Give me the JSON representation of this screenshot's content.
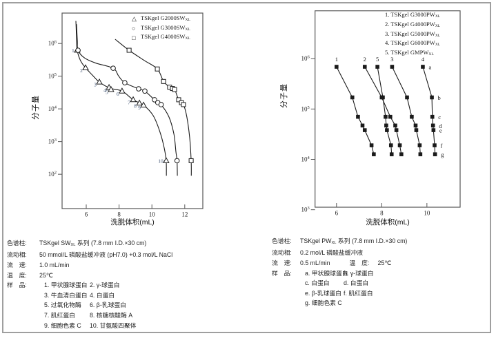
{
  "colors": {
    "ink": "#1a1a1a",
    "axis": "#555555",
    "frame": "#9f9f9f",
    "num_label": "#3f5373"
  },
  "chart_data": [
    {
      "id": "sw",
      "type": "line",
      "xlabel": "洗脱体积(mL)",
      "ylabel": "分子量",
      "x_ticks": [
        6,
        8,
        10,
        12
      ],
      "y_ticks_exp": [
        6,
        5,
        4,
        3,
        2
      ],
      "x_range": [
        4.53,
        13.1
      ],
      "y_exp_range": [
        6.93,
        0.95
      ],
      "grid": false,
      "legend_position": "top-right",
      "legend": [
        {
          "glyph": "△",
          "icon": "triangle-marker",
          "prefix": "TSKgel G2000SW",
          "sub": "XL"
        },
        {
          "glyph": "○",
          "icon": "circle-marker",
          "prefix": "TSKgel G3000SW",
          "sub": "XL"
        },
        {
          "glyph": "□",
          "icon": "square-marker",
          "prefix": "TSKgel G4000SW",
          "sub": "XL"
        }
      ],
      "series": [
        {
          "name": "TSKgel G2000SWXL",
          "marker": "triangle-open",
          "points": [
            [
              5.45,
              620000
            ],
            [
              5.96,
              180000
            ],
            [
              6.8,
              66000
            ],
            [
              7.39,
              45000
            ],
            [
              7.51,
              39000
            ],
            [
              8.18,
              35000
            ],
            [
              8.86,
              19000
            ],
            [
              9.24,
              15000
            ],
            [
              9.49,
              13000
            ],
            [
              10.87,
              260
            ]
          ],
          "point_labels": [
            "1",
            "2",
            "3",
            "4",
            "5",
            "6",
            "7",
            "8",
            "9",
            "10"
          ],
          "curve": [
            [
              5.37,
              4900000
            ],
            [
              5.41,
              1500000
            ],
            [
              5.45,
              620000
            ],
            [
              5.65,
              300000
            ],
            [
              5.96,
              180000
            ],
            [
              6.4,
              105000
            ],
            [
              6.8,
              66000
            ],
            [
              7.45,
              43000
            ],
            [
              8.18,
              35000
            ],
            [
              8.86,
              19000
            ],
            [
              9.49,
              13000
            ],
            [
              10.08,
              6200
            ],
            [
              10.5,
              1900
            ],
            [
              10.75,
              630
            ],
            [
              10.87,
              260
            ],
            [
              10.88,
              90
            ]
          ]
        },
        {
          "name": "TSKgel G3000SWXL",
          "marker": "circle-open",
          "points": [
            [
              5.5,
              620000
            ],
            [
              7.64,
              175000
            ],
            [
              8.35,
              63000
            ],
            [
              9.19,
              41000
            ],
            [
              9.57,
              35000
            ],
            [
              10.16,
              19000
            ],
            [
              10.36,
              15500
            ],
            [
              10.56,
              13500
            ],
            [
              11.53,
              260
            ]
          ],
          "curve": [
            [
              5.41,
              3900000
            ],
            [
              5.46,
              1200000
            ],
            [
              5.5,
              620000
            ],
            [
              5.9,
              360000
            ],
            [
              6.6,
              250000
            ],
            [
              7.64,
              175000
            ],
            [
              7.97,
              102000
            ],
            [
              8.35,
              63000
            ],
            [
              9.19,
              41000
            ],
            [
              9.57,
              35000
            ],
            [
              10.16,
              19000
            ],
            [
              10.56,
              13500
            ],
            [
              11.04,
              5600
            ],
            [
              11.34,
              1700
            ],
            [
              11.46,
              490
            ],
            [
              11.53,
              260
            ],
            [
              11.55,
              90
            ]
          ]
        },
        {
          "name": "TSKgel G4000SWXL",
          "marker": "square-open",
          "points": [
            [
              8.61,
              620000
            ],
            [
              10.33,
              166000
            ],
            [
              10.71,
              69000
            ],
            [
              11.08,
              46000
            ],
            [
              11.25,
              42000
            ],
            [
              11.38,
              39000
            ],
            [
              11.63,
              19000
            ],
            [
              11.8,
              15500
            ],
            [
              11.92,
              13500
            ],
            [
              12.39,
              260
            ]
          ],
          "curve": [
            [
              7.76,
              1350000
            ],
            [
              8.61,
              620000
            ],
            [
              9.5,
              310000
            ],
            [
              10.33,
              166000
            ],
            [
              10.71,
              69000
            ],
            [
              11.1,
              46000
            ],
            [
              11.38,
              39000
            ],
            [
              11.63,
              19000
            ],
            [
              11.92,
              13500
            ],
            [
              12.13,
              5600
            ],
            [
              12.3,
              1300
            ],
            [
              12.39,
              260
            ],
            [
              12.4,
              90
            ]
          ]
        }
      ]
    },
    {
      "id": "pw",
      "type": "line",
      "xlabel": "洗脱体积(mL)",
      "ylabel": "分子量",
      "x_ticks": [
        6,
        8,
        10
      ],
      "y_ticks_exp": [
        6,
        5,
        4,
        3
      ],
      "x_range": [
        5.05,
        11.47
      ],
      "y_exp_range": [
        6.95,
        3.05
      ],
      "grid": false,
      "legend_position": "top-right",
      "legend": [
        {
          "prefix": "1. TSKgel G3000PW",
          "sub": "XL"
        },
        {
          "prefix": "2. TSKgel G4000PW",
          "sub": "XL"
        },
        {
          "prefix": "3. TSKgel G5000PW",
          "sub": "XL"
        },
        {
          "prefix": "4. TSKgel G6000PW",
          "sub": "XL"
        },
        {
          "prefix": "5. TSKgel GMPW",
          "sub": "XL"
        }
      ],
      "row_labels": [
        "a",
        "b",
        "c",
        "d",
        "e",
        "f",
        "g"
      ],
      "series": [
        {
          "name": "TSKgel G3000PWXL",
          "label": "1",
          "marker": "square-filled",
          "points": [
            [
              6.0,
              690000
            ],
            [
              6.7,
              170000
            ],
            [
              6.95,
              70000
            ],
            [
              7.15,
              47000
            ],
            [
              7.25,
              38000
            ],
            [
              7.55,
              19000
            ],
            [
              7.65,
              12600
            ]
          ]
        },
        {
          "name": "TSKgel G4000PWXL",
          "label": "2",
          "marker": "square-filled",
          "points": [
            [
              7.25,
              690000
            ],
            [
              8.0,
              170000
            ],
            [
              8.38,
              70000
            ],
            [
              8.6,
              47000
            ],
            [
              8.65,
              38000
            ],
            [
              8.8,
              19000
            ],
            [
              8.87,
              12600
            ]
          ]
        },
        {
          "name": "TSKgel G5000PWXL",
          "label": "3",
          "marker": "square-filled",
          "points": [
            [
              8.46,
              690000
            ],
            [
              9.12,
              170000
            ],
            [
              9.33,
              70000
            ],
            [
              9.5,
              47000
            ],
            [
              9.53,
              38000
            ],
            [
              9.68,
              19000
            ],
            [
              9.71,
              12600
            ]
          ]
        },
        {
          "name": "TSKgel G6000PWXL",
          "label": "4",
          "marker": "square-filled",
          "letters": true,
          "points": [
            [
              9.82,
              690000
            ],
            [
              10.22,
              170000
            ],
            [
              10.24,
              70000
            ],
            [
              10.27,
              47000
            ],
            [
              10.29,
              38000
            ],
            [
              10.34,
              19000
            ],
            [
              10.36,
              12600
            ]
          ]
        },
        {
          "name": "TSKgel GMPWXL",
          "label": "5",
          "marker": "square-filled",
          "points": [
            [
              7.81,
              690000
            ],
            [
              8.05,
              170000
            ],
            [
              8.17,
              70000
            ],
            [
              8.2,
              47000
            ],
            [
              8.23,
              38000
            ],
            [
              8.41,
              19000
            ],
            [
              8.44,
              12600
            ]
          ]
        }
      ]
    }
  ],
  "notes_left": {
    "column_label": "色谱柱:",
    "column_prefix": "TSKgel SW",
    "column_sub": "XL",
    "column_suffix": " 系列 (7.8 mm I.D.×30 cm)",
    "eluent_label": "流动相:",
    "eluent": "50 mmol/L 磷酸盐缓冲液 (pH7.0) +0.3 mol/L NaCl",
    "flow_label": "流　速:",
    "flow": "1.0 mL/min",
    "temp_label": "温　度:",
    "temp": "25℃",
    "sample_label": "样　品:",
    "samples": [
      "1. 甲状腺球蛋白",
      "2. γ-球蛋白",
      "3. 牛血清白蛋白",
      "4. 白蛋白",
      "5. 过氧化物酶",
      "6. β-乳球蛋白",
      "7. 肌红蛋白",
      "8. 核糖核酸酶 A",
      "9. 细胞色素 C",
      "10. 甘氨酸四聚体"
    ]
  },
  "notes_right": {
    "column_label": "色谱柱:",
    "column_prefix": "TSKgel PW",
    "column_sub": "XL",
    "column_suffix": " 系列 (7.8 mm I.D.×30 cm)",
    "eluent_label": "流动相:",
    "eluent": "0.2 mol/L 磷酸盐缓冲液",
    "flow_label": "流　速:",
    "flow": "0.5 mL/min",
    "temp_label": "温　度:",
    "temp": "25℃",
    "sample_label": "样　品:",
    "samples": [
      "a. 甲状腺球蛋白",
      "b. γ-球蛋白",
      "c. 白蛋白",
      "d. 白蛋白",
      "e. β-乳球蛋白",
      "f. 肌红蛋白",
      "g. 细胞色素 C"
    ]
  }
}
